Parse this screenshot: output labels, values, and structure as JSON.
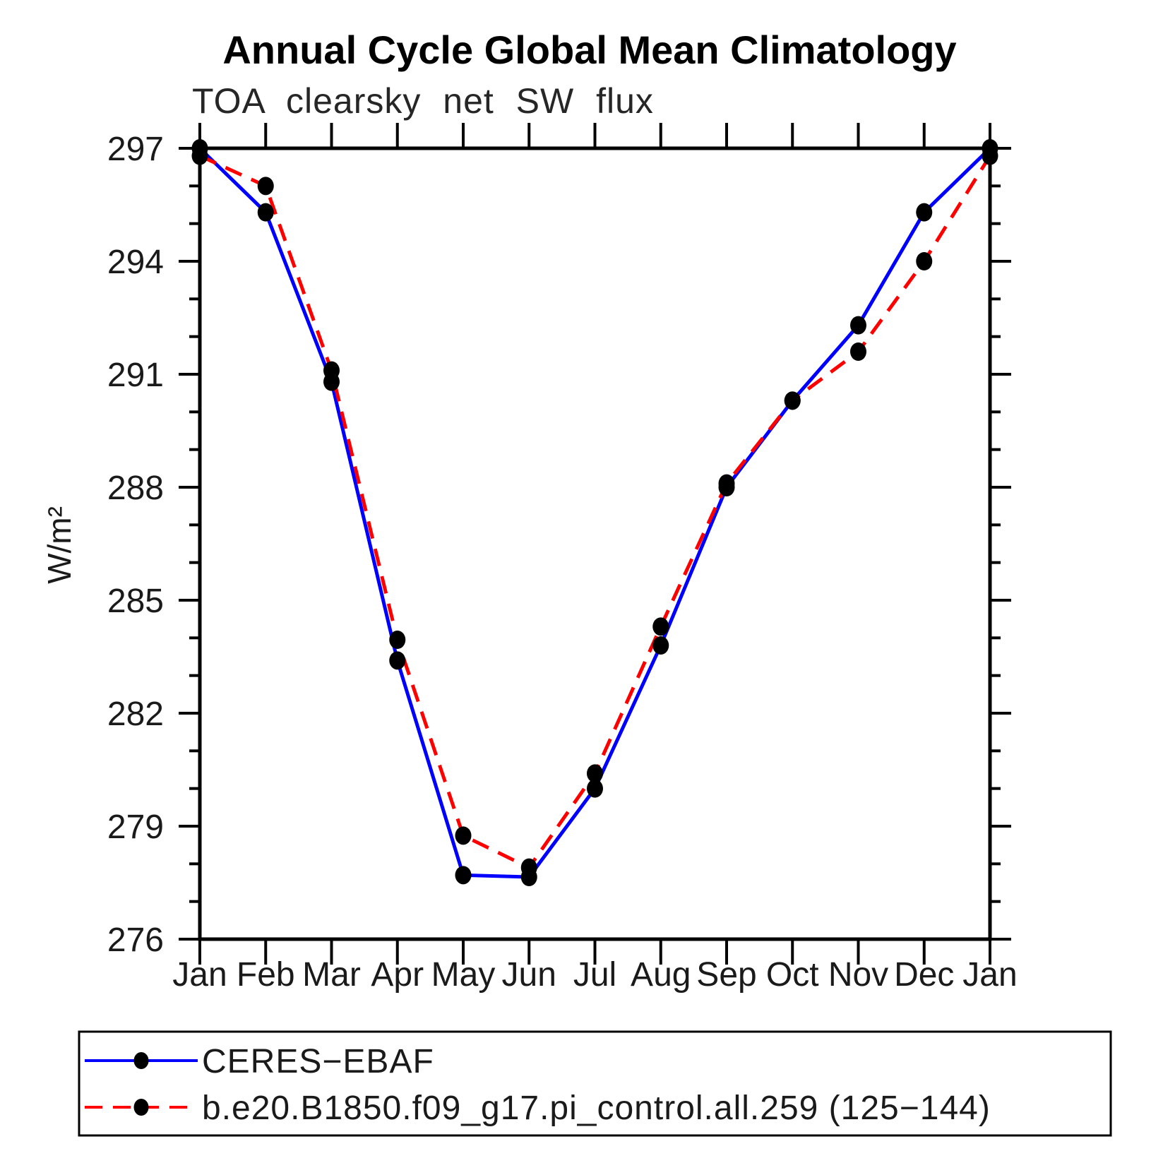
{
  "title": "Annual Cycle Global Mean Climatology",
  "subtitle": "TOA clearsky net SW flux",
  "chart_data": {
    "type": "line",
    "categories": [
      "Jan",
      "Feb",
      "Mar",
      "Apr",
      "May",
      "Jun",
      "Jul",
      "Aug",
      "Sep",
      "Oct",
      "Nov",
      "Dec",
      "Jan"
    ],
    "ylabel": "W/m²",
    "xlabel": "",
    "ylim": [
      276,
      297
    ],
    "ytick_major": [
      276,
      279,
      282,
      285,
      288,
      291,
      294,
      297
    ],
    "ytick_minor_step": 1,
    "grid": false,
    "legend_position": "bottom",
    "marker_color": "#000000",
    "series": [
      {
        "name": "CERES−EBAF",
        "color": "#0000ff",
        "style": "solid",
        "marker": "filled-circle",
        "values": [
          297.0,
          295.3,
          290.8,
          283.4,
          277.7,
          277.65,
          280.0,
          283.8,
          288.0,
          290.3,
          292.3,
          295.3,
          297.0
        ]
      },
      {
        "name": "b.e20.B1850.f09_g17.pi_control.all.259 (125−144)",
        "color": "#ff0000",
        "style": "dashed",
        "marker": "filled-circle",
        "values": [
          296.8,
          296.0,
          291.1,
          283.95,
          278.75,
          277.9,
          280.4,
          284.3,
          288.1,
          290.3,
          291.6,
          294.0,
          296.8
        ]
      }
    ]
  }
}
